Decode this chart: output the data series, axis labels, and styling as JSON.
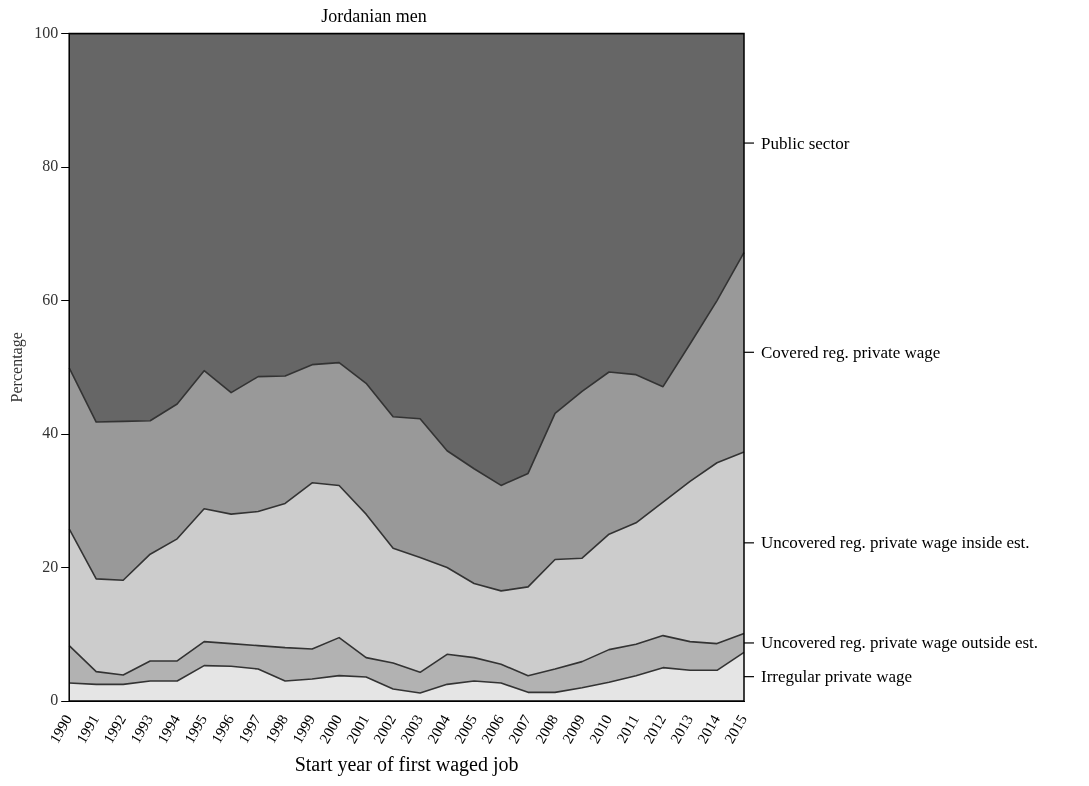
{
  "chart_data": {
    "type": "area",
    "title": "Jordanian men",
    "xlabel": "Start year of first waged job",
    "ylabel": "Percentage",
    "categories": [
      "1990",
      "1991",
      "1992",
      "1993",
      "1994",
      "1995",
      "1996",
      "1997",
      "1998",
      "1999",
      "2000",
      "2001",
      "2002",
      "2003",
      "2004",
      "2005",
      "2006",
      "2007",
      "2008",
      "2009",
      "2010",
      "2011",
      "2012",
      "2013",
      "2014",
      "2015"
    ],
    "stacked": true,
    "ylim": [
      0,
      100
    ],
    "yticks": [
      0,
      20,
      40,
      60,
      80,
      100
    ],
    "grid": false,
    "legend": false,
    "marker": "none",
    "line_style": "solid",
    "series": [
      {
        "name": "Irregular private wage",
        "color": "#e5e5e5",
        "values": [
          2.7,
          2.5,
          2.5,
          3.0,
          3.0,
          5.3,
          5.2,
          4.8,
          3.0,
          3.3,
          3.8,
          3.6,
          1.8,
          1.2,
          2.5,
          3.0,
          2.7,
          1.3,
          1.3,
          2.0,
          2.8,
          3.8,
          5.0,
          4.6,
          4.6,
          7.3
        ]
      },
      {
        "name": "Uncovered reg. private wage outside est.",
        "color": "#b2b2b2",
        "values": [
          5.6,
          1.9,
          1.4,
          3.0,
          3.0,
          3.6,
          3.4,
          3.5,
          5.0,
          4.5,
          5.7,
          2.9,
          3.9,
          3.1,
          4.5,
          3.5,
          2.8,
          2.5,
          3.5,
          3.9,
          4.9,
          4.7,
          4.8,
          4.3,
          4.0,
          2.8
        ]
      },
      {
        "name": "Uncovered reg. private wage inside est.",
        "color": "#cccccc",
        "values": [
          17.5,
          13.9,
          14.2,
          16.0,
          18.3,
          19.9,
          19.4,
          20.1,
          21.6,
          24.9,
          22.8,
          21.5,
          17.2,
          17.2,
          13.0,
          11.1,
          11.0,
          13.3,
          16.4,
          15.5,
          17.3,
          18.2,
          20.0,
          24.0,
          27.1,
          27.2
        ]
      },
      {
        "name": "Covered reg. private wage",
        "color": "#999999",
        "values": [
          24.1,
          23.5,
          23.8,
          20.0,
          20.2,
          20.7,
          18.2,
          20.2,
          19.1,
          17.7,
          18.4,
          19.6,
          19.7,
          20.8,
          17.5,
          17.2,
          15.8,
          17.0,
          21.9,
          25.0,
          24.3,
          22.2,
          17.3,
          20.6,
          24.3,
          29.9
        ]
      },
      {
        "name": "Public sector",
        "color": "#666666",
        "values": [
          50.1,
          58.2,
          58.1,
          58.0,
          55.5,
          50.5,
          53.8,
          51.4,
          51.3,
          49.6,
          49.3,
          52.4,
          57.4,
          57.7,
          62.5,
          65.2,
          67.7,
          65.9,
          56.9,
          53.6,
          50.7,
          51.1,
          52.9,
          46.5,
          40.0,
          32.8
        ]
      }
    ]
  }
}
